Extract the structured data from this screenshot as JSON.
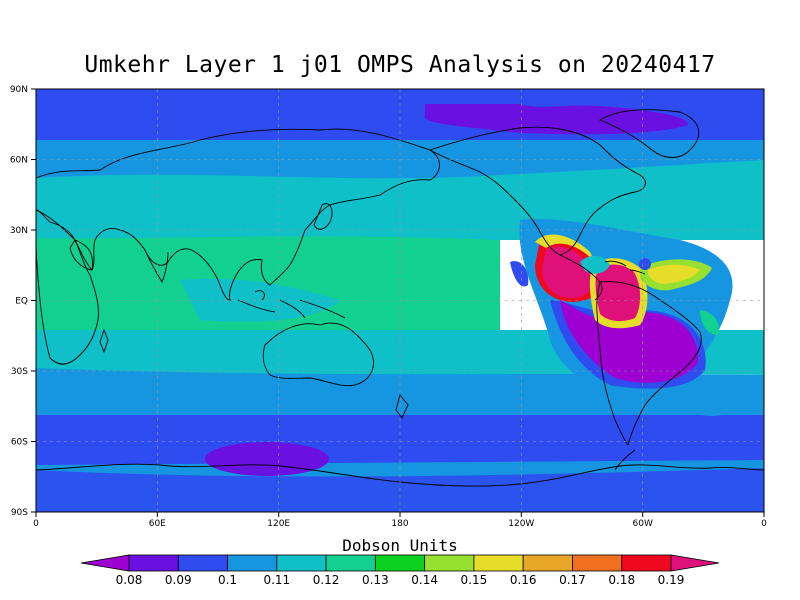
{
  "title": "Umkehr Layer 1 j01 OMPS Analysis on 20240417",
  "lat_ticks": [
    "90N",
    "60N",
    "30N",
    "EQ",
    "30S",
    "60S",
    "90S"
  ],
  "lon_ticks": [
    "0",
    "60E",
    "120E",
    "180",
    "120W",
    "60W",
    "0"
  ],
  "colorbar": {
    "title": "Dobson Units",
    "labels": [
      "0.08",
      "0.09",
      "0.1",
      "0.11",
      "0.12",
      "0.13",
      "0.14",
      "0.15",
      "0.16",
      "0.17",
      "0.18",
      "0.19"
    ],
    "colors": [
      "#9d00d0",
      "#6a10e0",
      "#2e4cf0",
      "#1696e0",
      "#10c0c8",
      "#12d090",
      "#0ad020",
      "#96e030",
      "#e6dc2a",
      "#e8a628",
      "#f07020",
      "#f00820",
      "#e0107a"
    ]
  },
  "field_bands": [
    {
      "level": "0.1",
      "color": "#2e4cf0"
    },
    {
      "level": "0.11",
      "color": "#1696e0"
    },
    {
      "level": "0.12",
      "color": "#10c0c8"
    },
    {
      "level": "0.13",
      "color": "#12d090"
    }
  ]
}
